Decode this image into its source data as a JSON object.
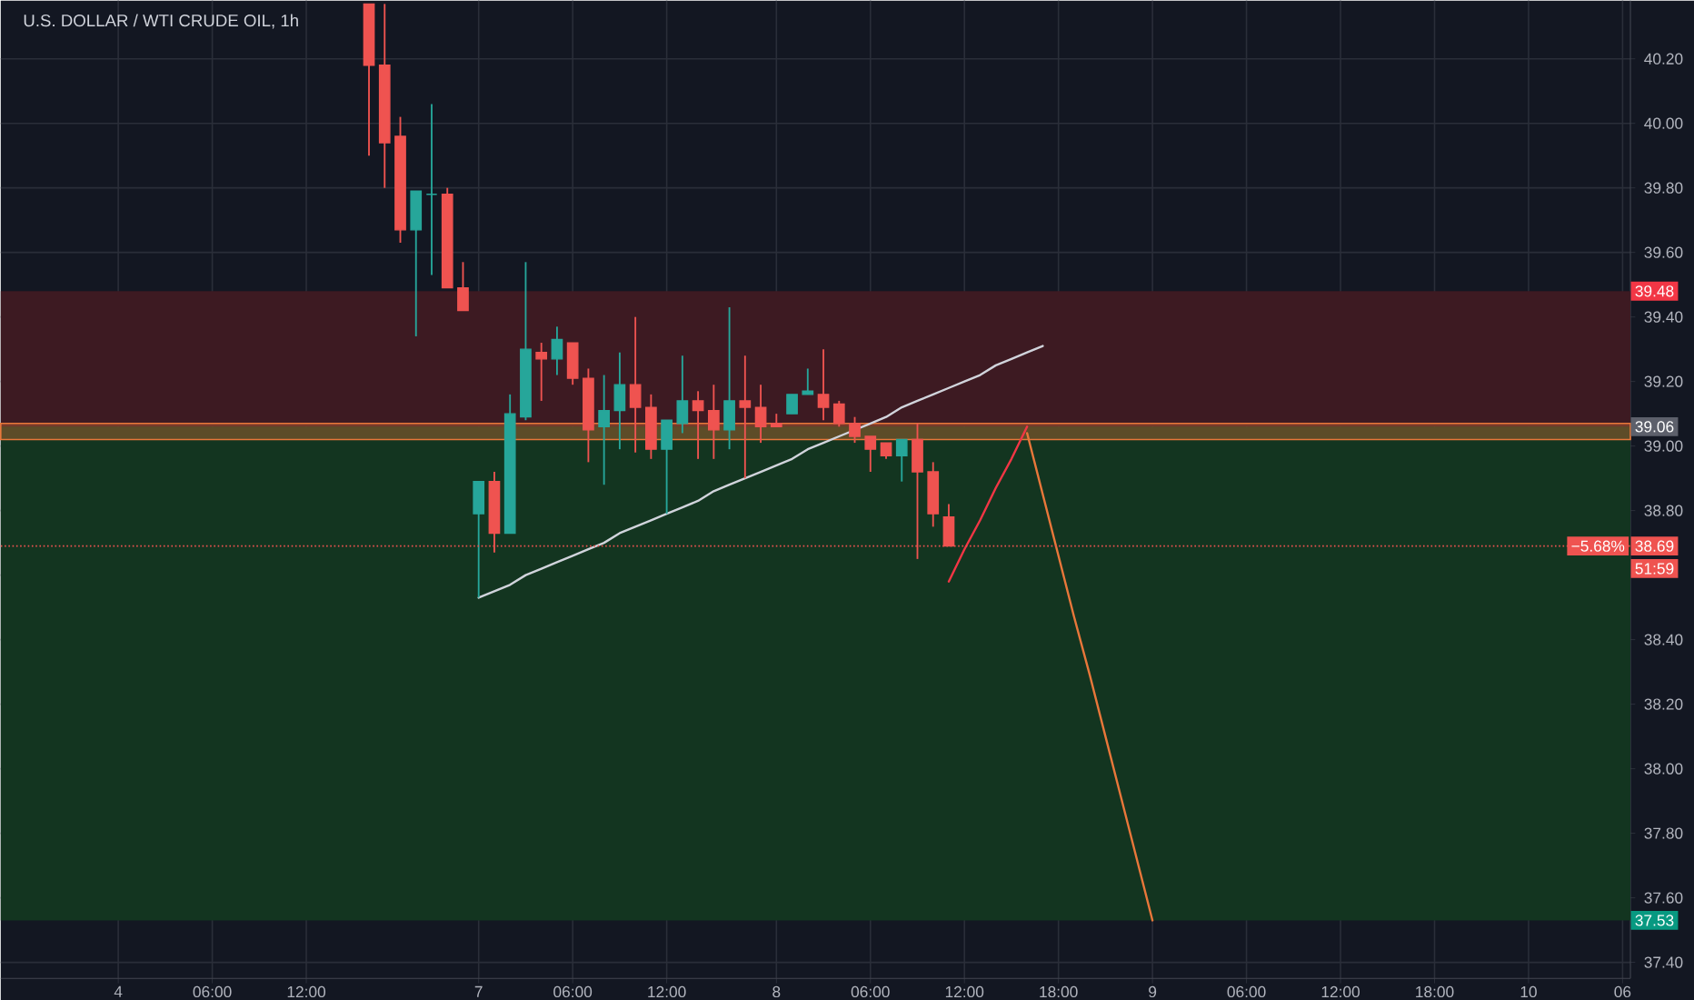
{
  "chart_data": {
    "type": "candlestick",
    "title": "U.S. DOLLAR / WTI CRUDE OIL, 1h",
    "categories": [
      null,
      null,
      null,
      null,
      null,
      null,
      null,
      "4",
      null,
      null,
      null,
      null,
      null,
      "06:00",
      null,
      null,
      null,
      null,
      null,
      "12:00",
      null,
      null,
      null,
      null,
      null,
      null,
      null,
      null,
      null,
      null,
      "7",
      null,
      null,
      null,
      null,
      null,
      "06:00",
      null,
      null,
      null,
      null,
      null,
      "12:00",
      null,
      null,
      null,
      null,
      null,
      null,
      "8",
      null,
      null,
      null,
      null,
      null,
      "06:00",
      null,
      null,
      null,
      null,
      null,
      "12:00",
      null,
      null,
      null,
      null,
      null,
      "18:00",
      null,
      null,
      null,
      null,
      null,
      "9",
      null,
      null,
      null,
      null,
      null,
      "06:00",
      null,
      null,
      null,
      null,
      null,
      "12:00",
      null,
      null,
      null,
      null,
      null,
      "18:00",
      null,
      null,
      null,
      null,
      null,
      "10",
      null,
      null,
      null,
      null,
      null,
      "06"
    ],
    "ylim": [
      37.35,
      40.38
    ],
    "grid": true,
    "yticks": [
      {
        "value": 37.4,
        "label": "37.40"
      },
      {
        "value": 37.6,
        "label": "37.60"
      },
      {
        "value": 37.8,
        "label": "37.80"
      },
      {
        "value": 38,
        "label": "38.00"
      },
      {
        "value": 38.2,
        "label": "38.20"
      },
      {
        "value": 38.4,
        "label": "38.40"
      },
      {
        "value": 38.6,
        "label": null
      },
      {
        "value": 38.8,
        "label": "38.80"
      },
      {
        "value": 39,
        "label": "39.00"
      },
      {
        "value": 39.2,
        "label": "39.20"
      },
      {
        "value": 39.4,
        "label": "39.40"
      },
      {
        "value": 39.6,
        "label": "39.60"
      },
      {
        "value": 39.8,
        "label": "39.80"
      },
      {
        "value": 40,
        "label": "40.00"
      },
      {
        "value": 40.2,
        "label": "40.20"
      }
    ],
    "bands": [
      {
        "axis": "y",
        "from": 39.06,
        "to": 39.48,
        "color": "#3d1a22"
      },
      {
        "axis": "y",
        "from": 37.53,
        "to": 39.06,
        "color": "#133520"
      },
      {
        "axis": "y",
        "from": 39.02,
        "to": 39.07,
        "color": "#e8773a"
      }
    ],
    "series": [
      {
        "type": "line",
        "color": "#d1d4dc",
        "values": [
          null,
          null,
          null,
          null,
          null,
          null,
          null,
          null,
          null,
          null,
          null,
          null,
          null,
          null,
          null,
          null,
          null,
          null,
          null,
          null,
          null,
          null,
          null,
          null,
          null,
          null,
          null,
          null,
          null,
          null,
          38.53,
          38.55,
          38.57,
          38.6,
          38.62,
          38.64,
          38.66,
          38.68,
          38.7,
          38.73,
          38.75,
          38.77,
          38.79,
          38.81,
          38.83,
          38.86,
          38.88,
          38.9,
          38.92,
          38.94,
          38.96,
          38.99,
          39.01,
          39.03,
          39.05,
          39.07,
          39.09,
          39.12,
          39.14,
          39.16,
          39.18,
          39.2,
          39.22,
          39.25,
          39.27,
          39.29,
          39.31,
          null,
          null,
          null,
          null,
          null,
          null,
          null,
          null,
          null,
          null,
          null,
          null,
          null,
          null,
          null,
          null,
          null,
          null,
          null,
          null,
          null,
          null,
          null,
          null,
          null,
          null,
          null,
          null,
          null,
          null,
          null,
          null,
          null,
          null,
          null,
          null,
          null
        ]
      },
      {
        "type": "line",
        "color": "#f23645",
        "values": [
          null,
          null,
          null,
          null,
          null,
          null,
          null,
          null,
          null,
          null,
          null,
          null,
          null,
          null,
          null,
          null,
          null,
          null,
          null,
          null,
          null,
          null,
          null,
          null,
          null,
          null,
          null,
          null,
          null,
          null,
          null,
          null,
          null,
          null,
          null,
          null,
          null,
          null,
          null,
          null,
          null,
          null,
          null,
          null,
          null,
          null,
          null,
          null,
          null,
          null,
          null,
          null,
          null,
          null,
          null,
          null,
          null,
          null,
          null,
          null,
          38.58,
          38.68,
          38.77,
          38.87,
          38.96,
          39.06,
          null,
          null,
          null,
          null,
          null,
          null,
          null,
          null,
          null,
          null,
          null,
          null,
          null,
          null,
          null,
          null,
          null,
          null,
          null,
          null,
          null,
          null,
          null,
          null,
          null,
          null,
          null,
          null,
          null,
          null,
          null,
          null,
          null,
          null,
          null,
          null,
          null,
          null
        ]
      },
      {
        "type": "line",
        "color": "#e8773a",
        "values": [
          null,
          null,
          null,
          null,
          null,
          null,
          null,
          null,
          null,
          null,
          null,
          null,
          null,
          null,
          null,
          null,
          null,
          null,
          null,
          null,
          null,
          null,
          null,
          null,
          null,
          null,
          null,
          null,
          null,
          null,
          null,
          null,
          null,
          null,
          null,
          null,
          null,
          null,
          null,
          null,
          null,
          null,
          null,
          null,
          null,
          null,
          null,
          null,
          null,
          null,
          null,
          null,
          null,
          null,
          null,
          null,
          null,
          null,
          null,
          null,
          null,
          null,
          null,
          null,
          null,
          39.04,
          38.85,
          38.66,
          38.47,
          38.29,
          38.1,
          37.91,
          37.72,
          37.53,
          null,
          null,
          null,
          null,
          null,
          null,
          null,
          null,
          null,
          null,
          null,
          null,
          null,
          null,
          null,
          null,
          null,
          null,
          null,
          null,
          null,
          null,
          null,
          null,
          null,
          null,
          null,
          null,
          null,
          null
        ]
      },
      {
        "ohlc": [
          null,
          null,
          null,
          null,
          null,
          null,
          null,
          null,
          null,
          null,
          null,
          null,
          null,
          null,
          null,
          null,
          null,
          null,
          null,
          null,
          null,
          null,
          null,
          [
            40.37,
            40.37,
            39.9,
            40.18
          ],
          [
            40.18,
            40.37,
            39.8,
            39.94
          ],
          [
            39.96,
            40.02,
            39.63,
            39.67
          ],
          [
            39.67,
            39.79,
            39.34,
            39.79
          ],
          [
            39.78,
            40.06,
            39.53,
            39.78
          ],
          [
            39.78,
            39.8,
            39.49,
            39.49
          ],
          [
            39.49,
            39.57,
            39.42,
            39.42
          ],
          [
            38.79,
            38.89,
            38.53,
            38.89
          ],
          [
            38.89,
            38.92,
            38.67,
            38.73
          ],
          [
            38.73,
            39.16,
            38.73,
            39.1
          ],
          [
            39.09,
            39.57,
            39.08,
            39.3
          ],
          [
            39.29,
            39.32,
            39.14,
            39.27
          ],
          [
            39.27,
            39.37,
            39.22,
            39.33
          ],
          [
            39.32,
            39.32,
            39.19,
            39.21
          ],
          [
            39.21,
            39.24,
            38.95,
            39.05
          ],
          [
            39.06,
            39.22,
            38.88,
            39.11
          ],
          [
            39.11,
            39.29,
            38.99,
            39.19
          ],
          [
            39.19,
            39.4,
            38.98,
            39.12
          ],
          [
            39.12,
            39.16,
            38.96,
            38.99
          ],
          [
            38.99,
            39.08,
            38.79,
            39.08
          ],
          [
            39.07,
            39.28,
            39.04,
            39.14
          ],
          [
            39.14,
            39.17,
            38.96,
            39.11
          ],
          [
            39.11,
            39.19,
            38.96,
            39.05
          ],
          [
            39.05,
            39.43,
            38.99,
            39.14
          ],
          [
            39.14,
            39.28,
            38.9,
            39.12
          ],
          [
            39.12,
            39.19,
            39.01,
            39.06
          ],
          [
            39.07,
            39.1,
            39.06,
            39.06
          ],
          [
            39.1,
            39.16,
            39.1,
            39.16
          ],
          [
            39.16,
            39.24,
            39.16,
            39.17
          ],
          [
            39.16,
            39.3,
            39.08,
            39.12
          ],
          [
            39.13,
            39.14,
            39.06,
            39.07
          ],
          [
            39.07,
            39.09,
            39.01,
            39.03
          ],
          [
            39.03,
            39.03,
            38.92,
            38.99
          ],
          [
            39.01,
            39.01,
            38.96,
            38.97
          ],
          [
            38.97,
            39.02,
            38.89,
            39.02
          ],
          [
            39.02,
            39.07,
            38.65,
            38.92
          ],
          [
            38.92,
            38.95,
            38.75,
            38.79
          ],
          [
            38.78,
            38.82,
            38.69,
            38.69
          ],
          null,
          null,
          null,
          null,
          null,
          null,
          null,
          null,
          null,
          null,
          null,
          null,
          null,
          null,
          null,
          null,
          null,
          null,
          null,
          null,
          null,
          null,
          null,
          null,
          null,
          null,
          null,
          null,
          null,
          null,
          null,
          null,
          null,
          null,
          null,
          null,
          null,
          null,
          null,
          null,
          null,
          null,
          null
        ],
        "colors": [
          null,
          null,
          null,
          null,
          null,
          null,
          null,
          null,
          null,
          null,
          null,
          null,
          null,
          null,
          null,
          null,
          null,
          null,
          null,
          null,
          null,
          null,
          null,
          "#ef5350",
          "#ef5350",
          "#ef5350",
          "#26a69a",
          "#26a69a",
          "#ef5350",
          "#ef5350",
          "#26a69a",
          "#ef5350",
          "#26a69a",
          "#26a69a",
          "#ef5350",
          "#26a69a",
          "#ef5350",
          "#ef5350",
          "#26a69a",
          "#26a69a",
          "#ef5350",
          "#ef5350",
          "#26a69a",
          "#26a69a",
          "#ef5350",
          "#ef5350",
          "#26a69a",
          "#ef5350",
          "#ef5350",
          "#ef5350",
          "#26a69a",
          "#26a69a",
          "#ef5350",
          "#ef5350",
          "#ef5350",
          "#ef5350",
          "#ef5350",
          "#26a69a",
          "#ef5350",
          "#ef5350",
          "#ef5350",
          null,
          null,
          null,
          null,
          null,
          null,
          null,
          null,
          null,
          null,
          null,
          null,
          null,
          null,
          null,
          null,
          null,
          null,
          null,
          null,
          null,
          null,
          null,
          null,
          null,
          null,
          null,
          null,
          null,
          null,
          null,
          null,
          null,
          null,
          null,
          null,
          null,
          null,
          null,
          null,
          null,
          null,
          null
        ]
      }
    ],
    "ref_lines": [
      {
        "axis": "y",
        "value": 38.69,
        "label": "38.69",
        "color": "#ef5350",
        "line_style": "dotted"
      }
    ],
    "annotations": [
      {
        "text": "39.48",
        "y": 39.48
      },
      {
        "text": "39.06",
        "y": 39.06
      },
      {
        "text": "37.53",
        "y": 37.53
      },
      "−5.68%",
      "51:59"
    ]
  }
}
